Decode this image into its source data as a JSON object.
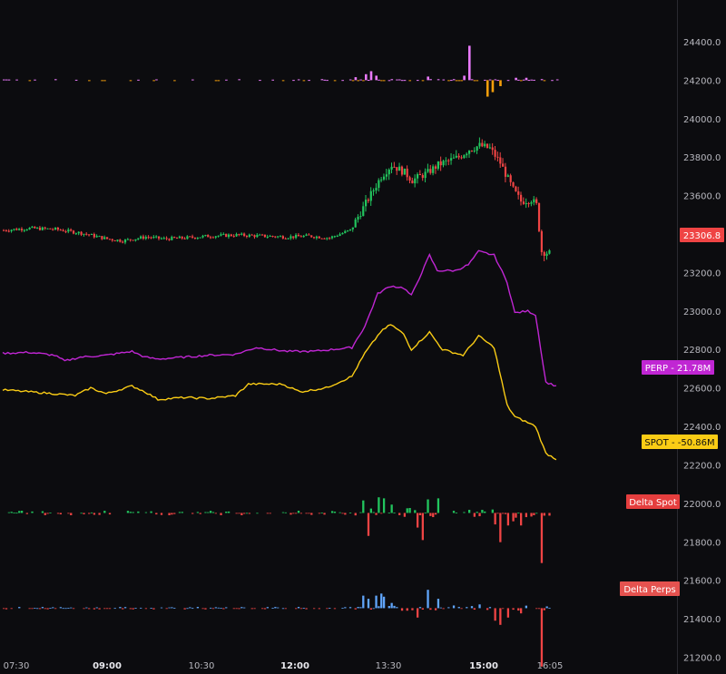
{
  "chart_data": {
    "type": "line",
    "price_axis": {
      "labels": [
        "24400.0",
        "24200.0",
        "24000.0",
        "23800.0",
        "23600.0",
        "23400.0",
        "23200.0",
        "23000.0",
        "22800.0",
        "22600.0",
        "22400.0",
        "22200.0",
        "22000.0",
        "21800.0",
        "21600.0",
        "21400.0",
        "21200.0"
      ],
      "range": [
        21100,
        24480
      ]
    },
    "time_axis": {
      "ticks": [
        {
          "label": "07:30",
          "bold": false
        },
        {
          "label": "09:00",
          "bold": true
        },
        {
          "label": "10:30",
          "bold": false
        },
        {
          "label": "12:00",
          "bold": true
        },
        {
          "label": "13:30",
          "bold": false
        },
        {
          "label": "15:00",
          "bold": true
        },
        {
          "label": "16:05",
          "bold": false
        }
      ]
    },
    "last_price": "23306.8",
    "tags": {
      "perp": "PERP  -  21.78M",
      "spot": "SPOT  -  -50.86M",
      "delta_spot": "Delta Spot",
      "delta_perps": "Delta Perps"
    },
    "colors": {
      "up": "#22c55e",
      "down": "#ef4444",
      "perp": "#c026d3",
      "spot": "#facc15",
      "perp_delta_pos": "#60a5fa",
      "top_pos": "#e879f9",
      "top_neg": "#f59e0b"
    },
    "price_close_anchors": [
      [
        0,
        23420
      ],
      [
        10,
        23430
      ],
      [
        20,
        23425
      ],
      [
        30,
        23405
      ],
      [
        40,
        23375
      ],
      [
        46,
        23365
      ],
      [
        55,
        23385
      ],
      [
        62,
        23375
      ],
      [
        70,
        23380
      ],
      [
        80,
        23390
      ],
      [
        90,
        23395
      ],
      [
        100,
        23390
      ],
      [
        110,
        23385
      ],
      [
        118,
        23390
      ],
      [
        126,
        23380
      ],
      [
        134,
        23420
      ],
      [
        140,
        23560
      ],
      [
        146,
        23700
      ],
      [
        150,
        23760
      ],
      [
        155,
        23720
      ],
      [
        158,
        23680
      ],
      [
        164,
        23720
      ],
      [
        168,
        23760
      ],
      [
        172,
        23780
      ],
      [
        176,
        23800
      ],
      [
        180,
        23840
      ],
      [
        184,
        23860
      ],
      [
        188,
        23845
      ],
      [
        192,
        23770
      ],
      [
        197,
        23630
      ],
      [
        200,
        23570
      ],
      [
        204,
        23580
      ],
      [
        206,
        23550
      ],
      [
        208,
        23310
      ],
      [
        211,
        23300
      ]
    ],
    "perp_cvd_anchors": [
      [
        0,
        22780
      ],
      [
        10,
        22785
      ],
      [
        20,
        22770
      ],
      [
        24,
        22740
      ],
      [
        30,
        22760
      ],
      [
        40,
        22770
      ],
      [
        50,
        22790
      ],
      [
        55,
        22760
      ],
      [
        60,
        22750
      ],
      [
        70,
        22760
      ],
      [
        80,
        22770
      ],
      [
        90,
        22775
      ],
      [
        98,
        22810
      ],
      [
        110,
        22790
      ],
      [
        120,
        22790
      ],
      [
        135,
        22810
      ],
      [
        140,
        22920
      ],
      [
        145,
        23090
      ],
      [
        150,
        23130
      ],
      [
        155,
        23120
      ],
      [
        158,
        23080
      ],
      [
        165,
        23290
      ],
      [
        168,
        23210
      ],
      [
        175,
        23210
      ],
      [
        180,
        23240
      ],
      [
        184,
        23310
      ],
      [
        190,
        23290
      ],
      [
        195,
        23150
      ],
      [
        198,
        22990
      ],
      [
        203,
        23000
      ],
      [
        206,
        22980
      ],
      [
        210,
        22630
      ],
      [
        214,
        22610
      ]
    ],
    "spot_cvd_anchors": [
      [
        0,
        22590
      ],
      [
        10,
        22580
      ],
      [
        20,
        22570
      ],
      [
        28,
        22560
      ],
      [
        34,
        22600
      ],
      [
        40,
        22570
      ],
      [
        50,
        22610
      ],
      [
        55,
        22580
      ],
      [
        60,
        22540
      ],
      [
        70,
        22550
      ],
      [
        80,
        22545
      ],
      [
        90,
        22560
      ],
      [
        95,
        22620
      ],
      [
        108,
        22620
      ],
      [
        115,
        22580
      ],
      [
        125,
        22600
      ],
      [
        135,
        22660
      ],
      [
        140,
        22780
      ],
      [
        146,
        22890
      ],
      [
        150,
        22930
      ],
      [
        155,
        22880
      ],
      [
        158,
        22800
      ],
      [
        165,
        22890
      ],
      [
        170,
        22800
      ],
      [
        178,
        22770
      ],
      [
        184,
        22870
      ],
      [
        190,
        22810
      ],
      [
        195,
        22510
      ],
      [
        198,
        22450
      ],
      [
        203,
        22420
      ],
      [
        206,
        22400
      ],
      [
        210,
        22260
      ],
      [
        214,
        22230
      ]
    ],
    "delta_spot_spikes": [
      [
        139,
        60
      ],
      [
        141,
        -110
      ],
      [
        145,
        75
      ],
      [
        147,
        70
      ],
      [
        150,
        40
      ],
      [
        160,
        -70
      ],
      [
        162,
        -130
      ],
      [
        164,
        65
      ],
      [
        168,
        70
      ],
      [
        185,
        15
      ],
      [
        190,
        -55
      ],
      [
        192,
        -140
      ],
      [
        195,
        -60
      ],
      [
        197,
        -40
      ],
      [
        200,
        -60
      ],
      [
        202,
        -20
      ],
      [
        208,
        -240
      ]
    ],
    "delta_perps_spikes": [
      [
        139,
        60
      ],
      [
        141,
        45
      ],
      [
        144,
        60
      ],
      [
        146,
        70
      ],
      [
        147,
        55
      ],
      [
        150,
        25
      ],
      [
        160,
        -45
      ],
      [
        164,
        88
      ],
      [
        168,
        45
      ],
      [
        184,
        18
      ],
      [
        190,
        -60
      ],
      [
        192,
        -80
      ],
      [
        195,
        -45
      ],
      [
        200,
        -25
      ],
      [
        208,
        -280
      ]
    ],
    "top_spikes": [
      [
        136,
        10
      ],
      [
        140,
        20
      ],
      [
        142,
        30
      ],
      [
        144,
        15
      ],
      [
        164,
        12
      ],
      [
        178,
        15
      ],
      [
        180,
        115
      ],
      [
        187,
        -55
      ],
      [
        189,
        -40
      ],
      [
        192,
        -20
      ],
      [
        198,
        8
      ],
      [
        202,
        8
      ]
    ]
  }
}
